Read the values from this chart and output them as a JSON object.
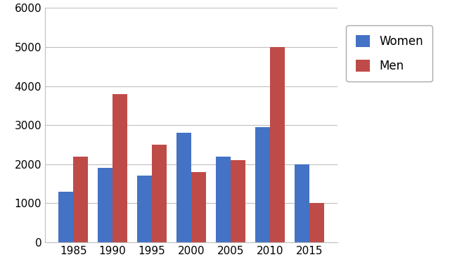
{
  "years": [
    1985,
    1990,
    1995,
    2000,
    2005,
    2010,
    2015
  ],
  "women": [
    1300,
    1900,
    1700,
    2800,
    2200,
    2950,
    2000
  ],
  "men": [
    2200,
    3800,
    2500,
    1800,
    2100,
    5000,
    1000
  ],
  "women_color": "#4472C4",
  "men_color": "#BE4B48",
  "ylim": [
    0,
    6000
  ],
  "yticks": [
    0,
    1000,
    2000,
    3000,
    4000,
    5000,
    6000
  ],
  "legend_labels": [
    "Women",
    "Men"
  ],
  "bar_width": 0.38,
  "background_color": "#FFFFFF",
  "grid_color": "#BFBFBF",
  "tick_label_fontsize": 11,
  "legend_fontsize": 12
}
